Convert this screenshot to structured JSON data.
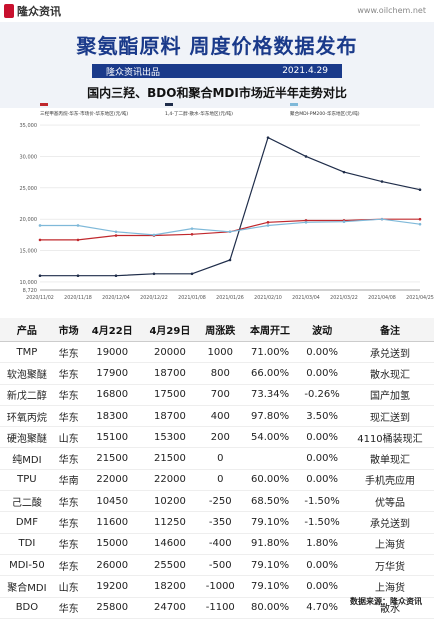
{
  "brand": {
    "logo_text": "隆众资讯",
    "url": "www.oilchem.net"
  },
  "header": {
    "title": "聚氨酯原料 周度价格数据发布",
    "publisher": "隆众资讯出品",
    "date": "2021.4.29"
  },
  "chart_heading": "国内三羟、BDO和聚合MDI市场近半年走势对比",
  "chart_data": {
    "type": "line",
    "title": "国内三羟、BDO和聚合MDI市场近半年走势对比",
    "x": [
      "2020/11/02",
      "2020/11/18",
      "2020/12/04",
      "2020/12/22",
      "2021/01/08",
      "2021/01/26",
      "2021/02/10",
      "2021/03/04",
      "2021/03/22",
      "2021/04/08",
      "2021/04/25"
    ],
    "xlabel": "",
    "ylabel": "",
    "ylim": [
      8720,
      35170
    ],
    "yticks": [
      8720,
      10000,
      15000,
      20000,
      25000,
      30000,
      35000
    ],
    "ytick_labels": [
      "8,720",
      "10,000",
      "15,000",
      "20,000",
      "25,000",
      "30,000",
      "35,000"
    ],
    "grid": true,
    "legend": "top",
    "series": [
      {
        "name": "三羟甲基丙烷-华东-市场价-华东地区(元/吨)",
        "color": "#c0282d",
        "values": [
          16700,
          16700,
          17400,
          17400,
          17600,
          18000,
          19500,
          19800,
          19800,
          20000,
          20000
        ]
      },
      {
        "name": "1,4-丁二醇-散水-华东地区(元/吨)",
        "color": "#1f2d4a",
        "values": [
          11000,
          11000,
          11000,
          11300,
          11300,
          13500,
          33000,
          30000,
          27500,
          26000,
          24700
        ]
      },
      {
        "name": "聚合MDI-PM200-华东地区(元/吨)",
        "color": "#7fb9d9",
        "values": [
          19000,
          19000,
          18000,
          17500,
          18500,
          18000,
          19000,
          19500,
          19600,
          20000,
          19200
        ]
      }
    ]
  },
  "table": {
    "headers": [
      "产品",
      "市场",
      "4月22日",
      "4月29日",
      "周涨跌",
      "本周开工",
      "波动",
      "备注"
    ],
    "rows": [
      {
        "cells": [
          "TMP",
          "华东",
          "19000",
          "20000",
          "1000",
          "71.00%",
          "0.00%",
          "承兑送到"
        ],
        "chg": "up",
        "wave": "zero"
      },
      {
        "cells": [
          "软泡聚醚",
          "华东",
          "17900",
          "18700",
          "800",
          "66.00%",
          "0.00%",
          "散水现汇"
        ],
        "chg": "up",
        "wave": "zero"
      },
      {
        "cells": [
          "新戊二醇",
          "华东",
          "16800",
          "17500",
          "700",
          "73.34%",
          "-0.26%",
          "国产加氢"
        ],
        "chg": "up",
        "wave": "down"
      },
      {
        "cells": [
          "环氧丙烷",
          "华东",
          "18300",
          "18700",
          "400",
          "97.80%",
          "3.50%",
          "现汇送到"
        ],
        "chg": "up",
        "wave": "up"
      },
      {
        "cells": [
          "硬泡聚醚",
          "山东",
          "15100",
          "15300",
          "200",
          "54.00%",
          "0.00%",
          "4110桶装现汇"
        ],
        "chg": "up",
        "wave": "zero"
      },
      {
        "cells": [
          "纯MDI",
          "华东",
          "21500",
          "21500",
          "0",
          "",
          "0.00%",
          "散单现汇"
        ],
        "chg": "zero",
        "wave": "zero"
      },
      {
        "cells": [
          "TPU",
          "华南",
          "22000",
          "22000",
          "0",
          "60.00%",
          "0.00%",
          "手机壳应用"
        ],
        "chg": "zero",
        "wave": "zero"
      },
      {
        "cells": [
          "己二酸",
          "华东",
          "10450",
          "10200",
          "-250",
          "68.50%",
          "-1.50%",
          "优等品"
        ],
        "chg": "down",
        "wave": "down"
      },
      {
        "cells": [
          "DMF",
          "华东",
          "11600",
          "11250",
          "-350",
          "79.10%",
          "-1.50%",
          "承兑送到"
        ],
        "chg": "down",
        "wave": "down"
      },
      {
        "cells": [
          "TDI",
          "华东",
          "15000",
          "14600",
          "-400",
          "91.80%",
          "1.80%",
          "上海货"
        ],
        "chg": "down",
        "wave": "up"
      },
      {
        "cells": [
          "MDI-50",
          "华东",
          "26000",
          "25500",
          "-500",
          "79.10%",
          "0.00%",
          "万华货"
        ],
        "chg": "down",
        "wave": "zero"
      },
      {
        "cells": [
          "聚合MDI",
          "山东",
          "19200",
          "18200",
          "-1000",
          "79.10%",
          "0.00%",
          "上海货"
        ],
        "chg": "down",
        "wave": "zero"
      },
      {
        "cells": [
          "BDO",
          "华东",
          "25800",
          "24700",
          "-1100",
          "80.00%",
          "4.70%",
          "散水"
        ],
        "chg": "down",
        "wave": "up"
      }
    ]
  },
  "footer": {
    "source": "数据来源：隆众资讯"
  }
}
